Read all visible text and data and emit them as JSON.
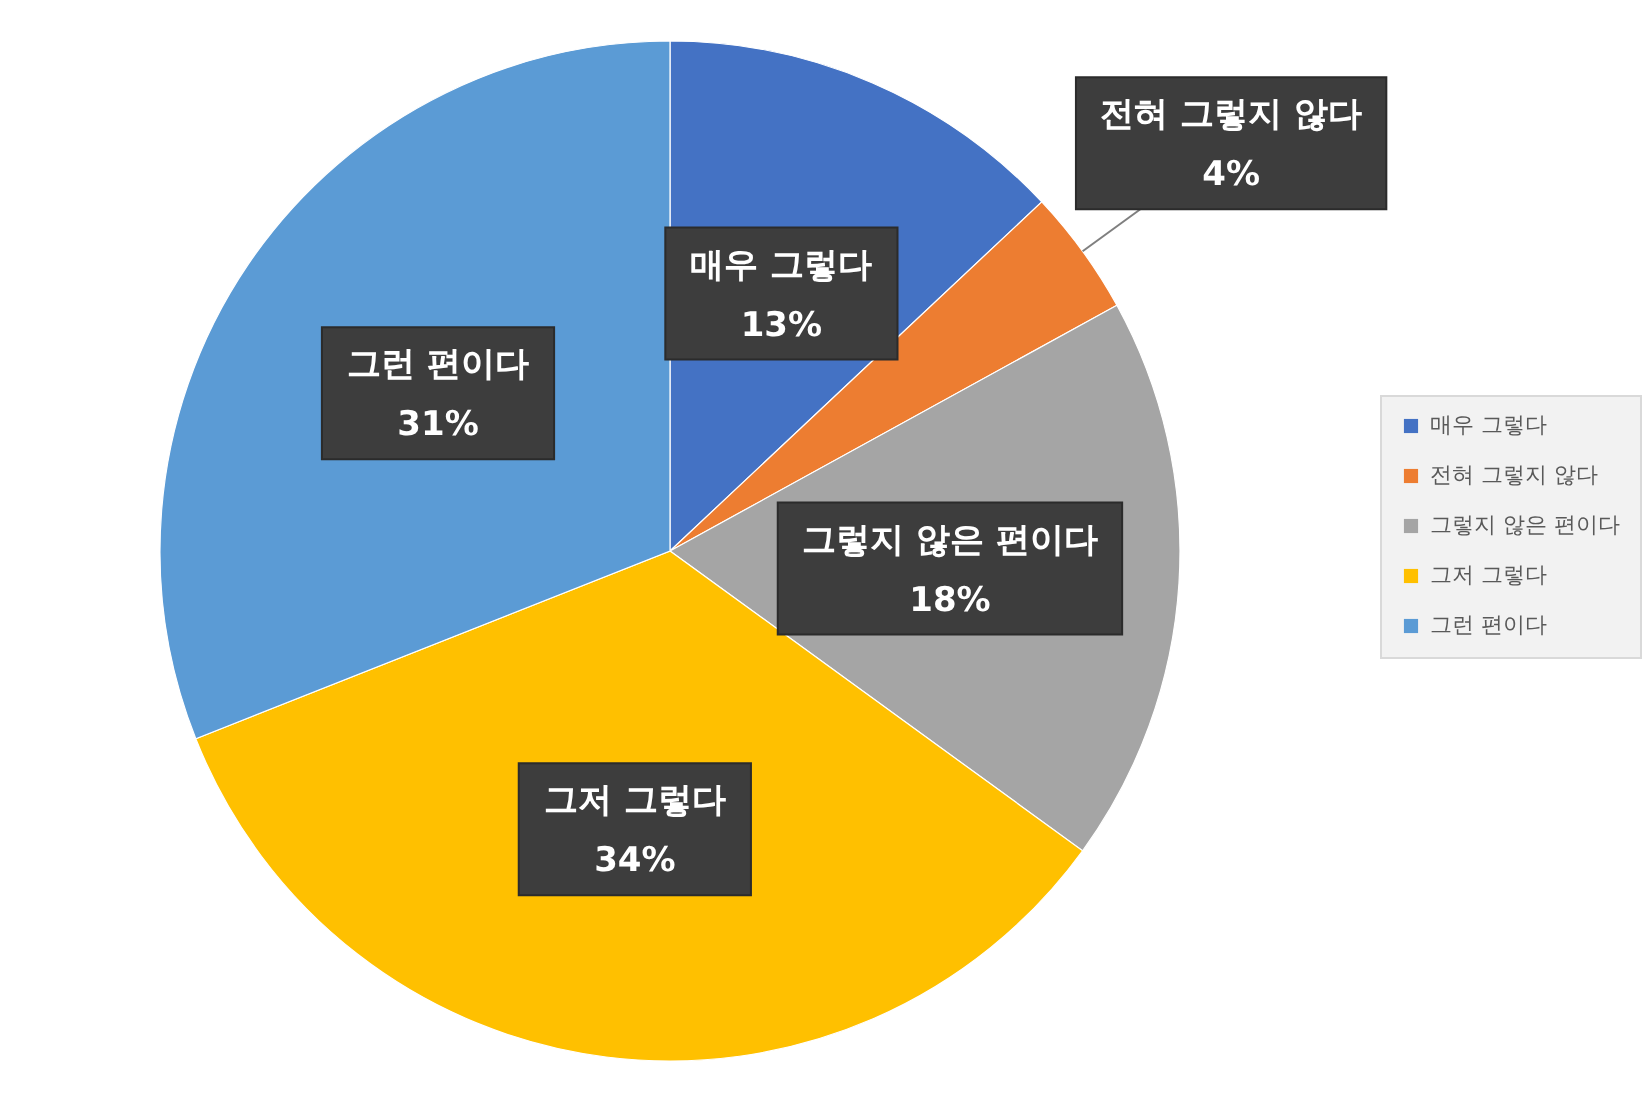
{
  "chart_data": {
    "type": "pie",
    "categories": [
      "매우 그렇다",
      "전혀 그렇지 않다",
      "그렇지 않은 편이다",
      "그저 그렇다",
      "그런 편이다"
    ],
    "values": [
      13,
      4,
      18,
      34,
      31
    ],
    "value_labels": [
      "13%",
      "4%",
      "18%",
      "34%",
      "31%"
    ],
    "colors": [
      "#4472c4",
      "#ed7d31",
      "#a5a5a5",
      "#ffc000",
      "#5b9bd5"
    ],
    "legend": "right"
  }
}
